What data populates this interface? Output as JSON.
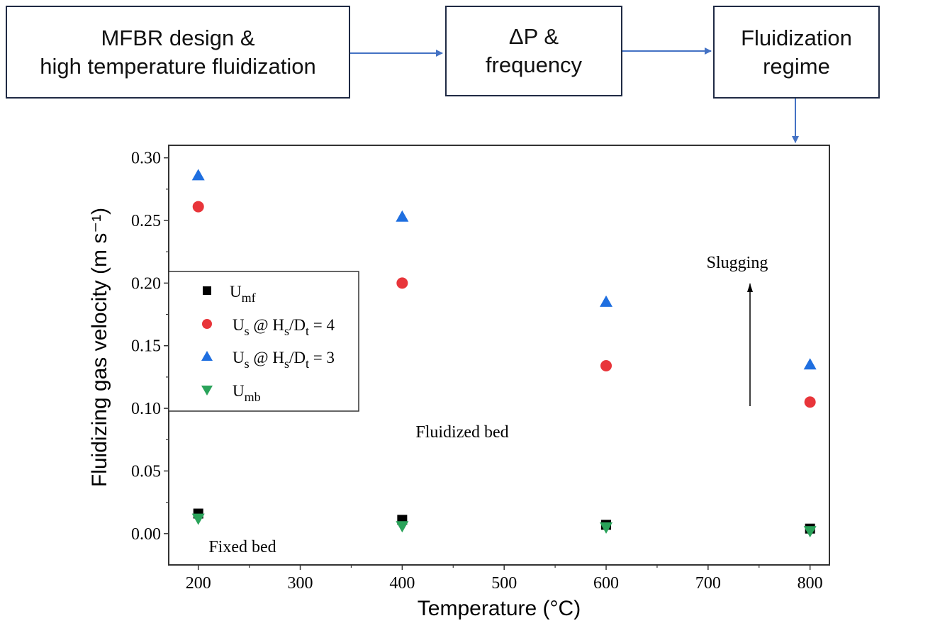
{
  "flow": {
    "boxes": [
      {
        "line1": "MFBR design  &",
        "line2": "high temperature  fluidization"
      },
      {
        "line1": "ΔP  &",
        "line2": "frequency"
      },
      {
        "line1": "Fluidization",
        "line2": "regime"
      }
    ],
    "arrow_color": "#4472c4"
  },
  "chart_data": {
    "type": "scatter",
    "title": "",
    "xlabel": "Temperature (°C)",
    "ylabel": "Fluidizing gas velocity (m s⁻¹)",
    "xlim": [
      171,
      819
    ],
    "ylim": [
      -0.025,
      0.31
    ],
    "xticks": [
      "200",
      "300",
      "400",
      "500",
      "600",
      "700",
      "800"
    ],
    "yticks": [
      "0.00",
      "0.05",
      "0.10",
      "0.15",
      "0.20",
      "0.25",
      "0.30"
    ],
    "legend_position": "middle-left",
    "series": [
      {
        "name": "Umf",
        "label_main": "U",
        "label_sub": "mf",
        "label_rest": "",
        "marker": "square",
        "color": "#000000",
        "x": [
          200,
          400,
          600,
          800
        ],
        "y": [
          0.016,
          0.011,
          0.007,
          0.004
        ]
      },
      {
        "name": "Us @ Hs/Dt = 4",
        "label_main": "U",
        "label_sub": "s",
        "label_rest": " @ H",
        "label_sub2": "s",
        "label_rest2": "/D",
        "label_sub3": "t",
        "label_rest3": " = 4",
        "marker": "circle",
        "color": "#e8353a",
        "x": [
          200,
          400,
          600,
          800
        ],
        "y": [
          0.261,
          0.2,
          0.134,
          0.105
        ]
      },
      {
        "name": "Us @ Hs/Dt = 3",
        "label_main": "U",
        "label_sub": "s",
        "label_rest": " @ H",
        "label_sub2": "s",
        "label_rest2": "/D",
        "label_sub3": "t",
        "label_rest3": " = 3",
        "marker": "triangle-up",
        "color": "#1f6fe0",
        "x": [
          200,
          400,
          600,
          800
        ],
        "y": [
          0.286,
          0.253,
          0.185,
          0.135
        ]
      },
      {
        "name": "Umb",
        "label_main": "U",
        "label_sub": "mb",
        "label_rest": "",
        "marker": "triangle-down",
        "color": "#2aa35a",
        "x": [
          200,
          400,
          600,
          800
        ],
        "y": [
          0.012,
          0.006,
          0.005,
          0.002
        ]
      }
    ],
    "annotations": {
      "slugging": "Slugging",
      "fluidized": "Fluidized bed",
      "fixed": "Fixed bed"
    }
  }
}
